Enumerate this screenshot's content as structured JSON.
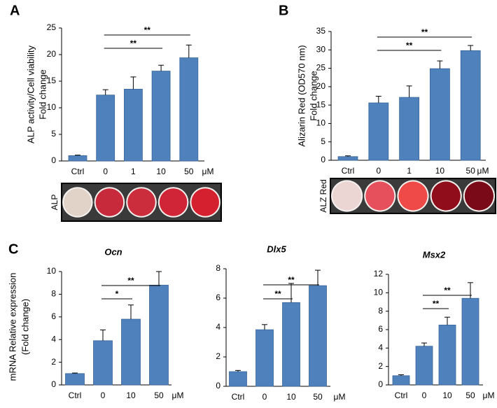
{
  "chart_data": [
    {
      "type": "bar",
      "panel": "A",
      "ylabel": [
        "ALP activity/Cell viability",
        "Fold change"
      ],
      "categories": [
        "Ctrl",
        "0",
        "1",
        "10",
        "50"
      ],
      "unit": "μM",
      "values": [
        1.0,
        12.4,
        13.5,
        16.9,
        19.4
      ],
      "errors": [
        0.1,
        1.0,
        2.3,
        1.1,
        2.4
      ],
      "color": "#4f81bd",
      "ylim": [
        0,
        25
      ],
      "yticks": [
        0,
        5,
        10,
        15,
        20,
        25
      ],
      "annotations": [
        {
          "text": "**",
          "between": [
            "0",
            "10"
          ]
        },
        {
          "text": "**",
          "between": [
            "0",
            "50"
          ]
        }
      ],
      "image_label": "ALP",
      "well_colors": [
        "#e2d3c8",
        "#c72a3b",
        "#cc2d3d",
        "#d02536",
        "#d4202f"
      ]
    },
    {
      "type": "bar",
      "panel": "B",
      "ylabel": [
        "Alizarin Red (OD570 nm)",
        "Fold change"
      ],
      "categories": [
        "Ctrl",
        "0",
        "1",
        "10",
        "50"
      ],
      "unit": "μM",
      "values": [
        1.0,
        15.6,
        17.1,
        24.9,
        29.8
      ],
      "errors": [
        0.2,
        1.8,
        3.1,
        2.1,
        1.4
      ],
      "color": "#4f81bd",
      "ylim": [
        0,
        35
      ],
      "yticks": [
        0,
        5,
        10,
        15,
        20,
        25,
        30,
        35
      ],
      "annotations": [
        {
          "text": "**",
          "between": [
            "0",
            "10"
          ]
        },
        {
          "text": "**",
          "between": [
            "0",
            "50"
          ]
        }
      ],
      "image_label": "ALZ Red",
      "well_colors": [
        "#ecd6d3",
        "#e6505c",
        "#ef4a48",
        "#900d1c",
        "#7a0a17"
      ]
    },
    {
      "type": "bar",
      "panel": "C",
      "ylabel": [
        "mRNA Relative expression",
        "(Fold change)"
      ],
      "title": "Ocn",
      "categories": [
        "Ctrl",
        "0",
        "10",
        "50"
      ],
      "unit": "μM",
      "values": [
        1.0,
        3.9,
        5.8,
        8.8
      ],
      "errors": [
        0.05,
        0.95,
        1.25,
        1.2
      ],
      "color": "#4f81bd",
      "ylim": [
        0,
        10
      ],
      "yticks": [
        0,
        2,
        4,
        6,
        8,
        10
      ],
      "annotations": [
        {
          "text": "*",
          "between": [
            "0",
            "10"
          ]
        },
        {
          "text": "**",
          "between": [
            "0",
            "50"
          ]
        }
      ]
    },
    {
      "type": "bar",
      "title": "Dlx5",
      "categories": [
        "Ctrl",
        "0",
        "10",
        "50"
      ],
      "unit": "μM",
      "values": [
        1.0,
        3.85,
        5.7,
        6.85
      ],
      "errors": [
        0.08,
        0.35,
        1.3,
        1.05
      ],
      "color": "#4f81bd",
      "ylim": [
        0,
        8
      ],
      "yticks": [
        0,
        2,
        4,
        6,
        8
      ],
      "annotations": [
        {
          "text": "**",
          "between": [
            "0",
            "10"
          ]
        },
        {
          "text": "**",
          "between": [
            "0",
            "50"
          ]
        }
      ]
    },
    {
      "type": "bar",
      "title": "Msx2",
      "categories": [
        "Ctrl",
        "0",
        "10",
        "50"
      ],
      "unit": "μM",
      "values": [
        1.0,
        4.2,
        6.5,
        9.4
      ],
      "errors": [
        0.1,
        0.35,
        0.85,
        1.7
      ],
      "color": "#4f81bd",
      "ylim": [
        0,
        12
      ],
      "yticks": [
        0,
        2,
        4,
        6,
        8,
        10,
        12
      ],
      "annotations": [
        {
          "text": "**",
          "between": [
            "0",
            "10"
          ]
        },
        {
          "text": "**",
          "between": [
            "0",
            "50"
          ]
        }
      ]
    }
  ]
}
